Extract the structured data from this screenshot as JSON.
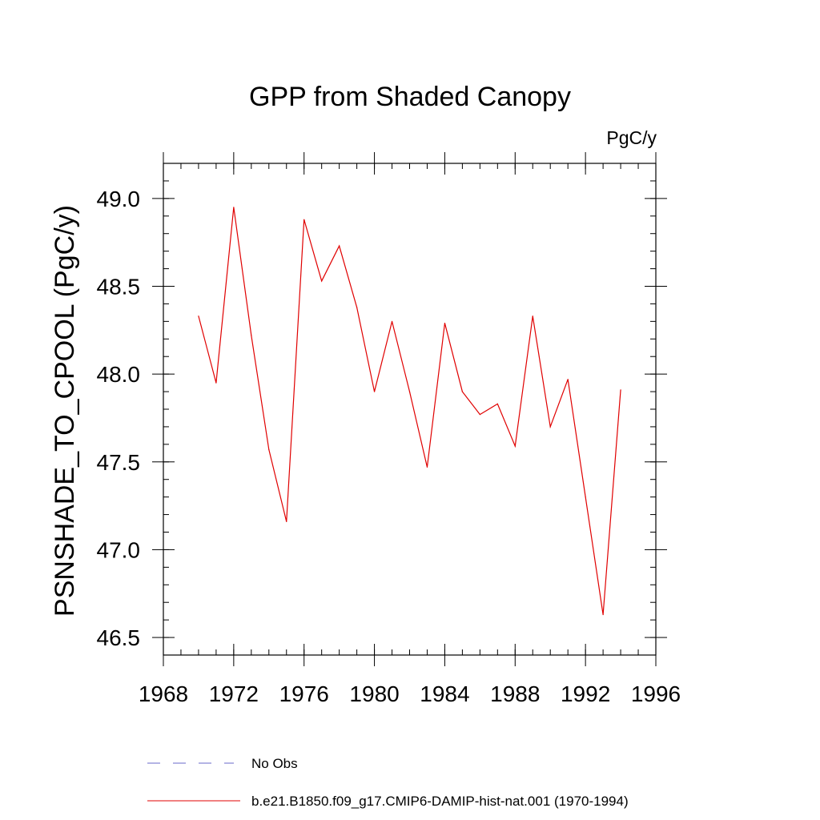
{
  "chart_data": {
    "type": "line",
    "title": "GPP from Shaded Canopy",
    "units_label": "PgC/y",
    "ylabel": "PSNSHADE_TO_CPOOL  (PgC/y)",
    "xlabel": "",
    "xlim": [
      1968,
      1996
    ],
    "ylim": [
      46.4,
      49.2
    ],
    "x_major_ticks": [
      1968,
      1972,
      1976,
      1980,
      1984,
      1988,
      1992,
      1996
    ],
    "x_minor_step": 1,
    "y_major_ticks": [
      46.5,
      47.0,
      47.5,
      48.0,
      48.5,
      49.0
    ],
    "y_tick_labels": [
      "46.5",
      "47.0",
      "47.5",
      "48.0",
      "48.5",
      "49.0"
    ],
    "y_minor_step": 0.1,
    "grid": false,
    "legend_position": "bottom",
    "legend": [
      {
        "label": "No Obs",
        "style": "dashed",
        "color": "#6a6ac8"
      },
      {
        "label": "b.e21.B1850.f09_g17.CMIP6-DAMIP-hist-nat.001 (1970-1994)",
        "style": "solid",
        "color": "#e00000"
      }
    ],
    "series": [
      {
        "name": "b.e21.B1850.f09_g17.CMIP6-DAMIP-hist-nat.001 (1970-1994)",
        "color": "#e00000",
        "x": [
          1970,
          1971,
          1972,
          1973,
          1974,
          1975,
          1976,
          1977,
          1978,
          1979,
          1980,
          1981,
          1982,
          1983,
          1984,
          1985,
          1986,
          1987,
          1988,
          1989,
          1990,
          1991,
          1992,
          1993,
          1994
        ],
        "y": [
          48.33,
          47.95,
          48.95,
          48.22,
          47.57,
          47.16,
          48.88,
          48.53,
          48.73,
          48.38,
          47.9,
          48.3,
          47.9,
          47.47,
          48.29,
          47.9,
          47.77,
          47.83,
          47.59,
          48.33,
          47.7,
          47.97,
          47.3,
          46.63,
          47.91
        ]
      }
    ]
  }
}
